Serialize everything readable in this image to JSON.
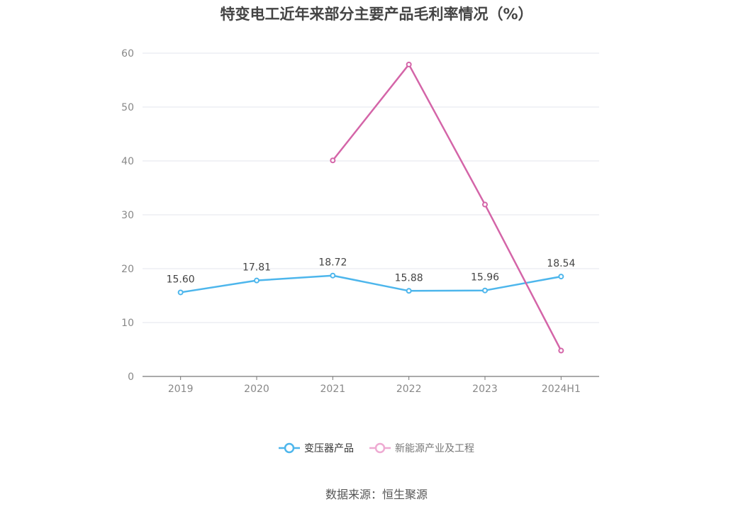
{
  "chart_data": {
    "type": "line",
    "title": "特变电工近年来部分主要产品毛利率情况（%）",
    "categories": [
      "2019",
      "2020",
      "2021",
      "2022",
      "2023",
      "2024H1"
    ],
    "ylim": [
      0,
      60
    ],
    "yticks": [
      0,
      10,
      20,
      30,
      40,
      50,
      60
    ],
    "grid": true,
    "legend_position": "bottom",
    "series": [
      {
        "name": "变压器产品",
        "color": "#4db6ec",
        "values": [
          15.6,
          17.81,
          18.72,
          15.88,
          15.96,
          18.54
        ],
        "labels": [
          "15.60",
          "17.81",
          "18.72",
          "15.88",
          "15.96",
          "18.54"
        ]
      },
      {
        "name": "新能源产业及工程",
        "color": "#d465a8",
        "values": [
          null,
          null,
          40.1,
          57.9,
          31.9,
          4.8
        ]
      }
    ]
  },
  "source": "数据来源：恒生聚源"
}
